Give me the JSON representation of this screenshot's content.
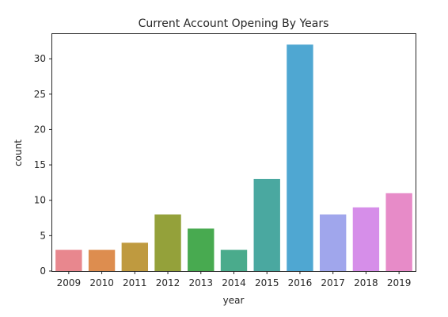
{
  "chart_data": {
    "type": "bar",
    "title": "Current Account Opening By Years",
    "xlabel": "year",
    "ylabel": "count",
    "categories": [
      "2009",
      "2010",
      "2011",
      "2012",
      "2013",
      "2014",
      "2015",
      "2016",
      "2017",
      "2018",
      "2019"
    ],
    "values": [
      3,
      3,
      4,
      8,
      6,
      3,
      13,
      32,
      8,
      9,
      11
    ],
    "ylim": [
      0,
      33.6
    ],
    "yticks": [
      0,
      5,
      10,
      15,
      20,
      25,
      30
    ],
    "grid": false,
    "colors": [
      "#e8878e",
      "#dd8d4f",
      "#bf9a3f",
      "#94a13a",
      "#48aa50",
      "#4aab8c",
      "#4aa8a0",
      "#4fa7d2",
      "#a0a6ec",
      "#d68ee9",
      "#e78bc8"
    ]
  }
}
